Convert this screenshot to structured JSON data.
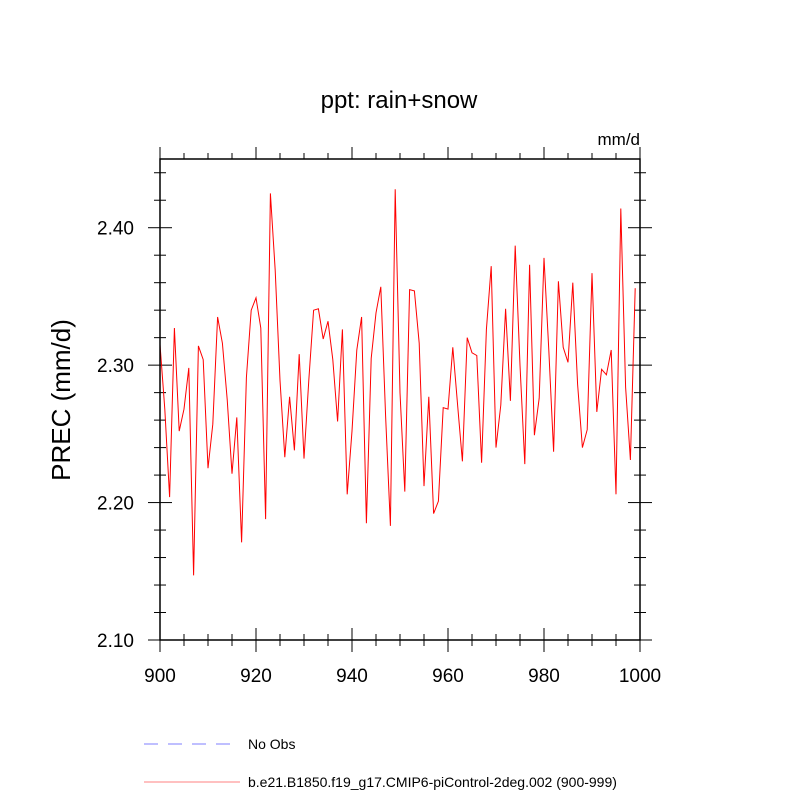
{
  "chart_data": {
    "type": "line",
    "title": "ppt: rain+snow",
    "units_label": "mm/d",
    "xlabel": "",
    "ylabel": "PREC  (mm/d)",
    "xlim": [
      900,
      1000
    ],
    "ylim": [
      2.1,
      2.45
    ],
    "xticks": [
      900,
      920,
      940,
      960,
      980,
      1000
    ],
    "xtick_labels": [
      "900",
      "920",
      "940",
      "960",
      "980",
      "1000"
    ],
    "yticks": [
      2.1,
      2.2,
      2.3,
      2.4
    ],
    "ytick_labels": [
      "2.10",
      "2.20",
      "2.30",
      "2.40"
    ],
    "grid": false,
    "legend_position": "bottom",
    "legend": [
      {
        "label": "No Obs",
        "color": "#7f7fff",
        "style": "dashed"
      },
      {
        "label": "b.e21.B1850.f19_g17.CMIP6-piControl-2deg.002 (900-999)",
        "color": "#ff0000",
        "style": "solid"
      }
    ],
    "series": [
      {
        "color": "#ff0000",
        "x_start": 900,
        "values": [
          2.315,
          2.268,
          2.204,
          2.327,
          2.252,
          2.268,
          2.298,
          2.147,
          2.314,
          2.304,
          2.225,
          2.257,
          2.335,
          2.316,
          2.275,
          2.221,
          2.262,
          2.171,
          2.291,
          2.34,
          2.349,
          2.327,
          2.188,
          2.425,
          2.369,
          2.289,
          2.233,
          2.277,
          2.238,
          2.308,
          2.232,
          2.289,
          2.34,
          2.341,
          2.319,
          2.332,
          2.304,
          2.259,
          2.326,
          2.206,
          2.252,
          2.311,
          2.335,
          2.185,
          2.305,
          2.338,
          2.357,
          2.263,
          2.183,
          2.428,
          2.28,
          2.208,
          2.355,
          2.354,
          2.316,
          2.212,
          2.277,
          2.192,
          2.201,
          2.269,
          2.268,
          2.313,
          2.271,
          2.23,
          2.32,
          2.309,
          2.307,
          2.229,
          2.326,
          2.372,
          2.24,
          2.271,
          2.341,
          2.274,
          2.387,
          2.3,
          2.228,
          2.373,
          2.249,
          2.276,
          2.378,
          2.311,
          2.237,
          2.361,
          2.313,
          2.302,
          2.36,
          2.286,
          2.24,
          2.253,
          2.367,
          2.266,
          2.297,
          2.293,
          2.311,
          2.206,
          2.414,
          2.284,
          2.231,
          2.356
        ]
      }
    ]
  }
}
